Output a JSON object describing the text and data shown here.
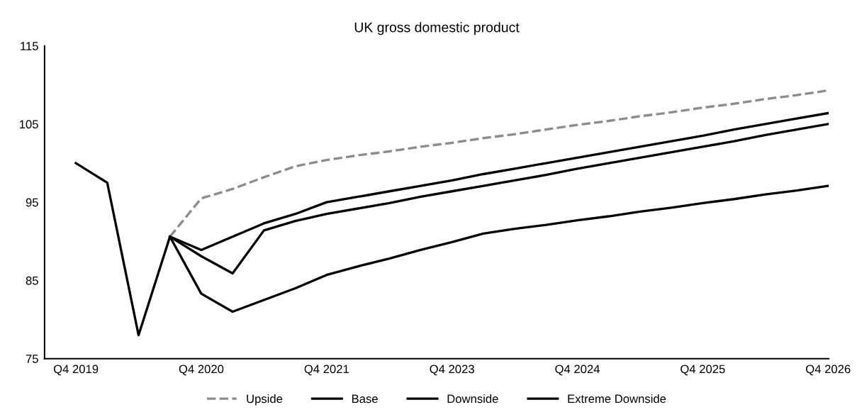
{
  "chart_data": {
    "type": "line",
    "title": "UK gross domestic product",
    "categories": [
      "Q4 2019",
      null,
      null,
      null,
      "Q4 2020",
      null,
      null,
      null,
      "Q4 2021",
      null,
      null,
      null,
      "Q4 2023",
      null,
      null,
      null,
      "Q4 2024",
      null,
      null,
      null,
      "Q4 2025",
      null,
      null,
      null,
      "Q4 2026"
    ],
    "series": [
      {
        "name": "Upside",
        "color": "#8c8c8c",
        "line_style": "dashed",
        "values": [
          null,
          null,
          null,
          90.6,
          95.5,
          96.7,
          98.2,
          99.6,
          100.4,
          101.0,
          101.5,
          102.1,
          102.6,
          103.2,
          103.7,
          104.3,
          104.9,
          105.4,
          106.0,
          106.5,
          107.1,
          107.6,
          108.2,
          108.7,
          109.3
        ]
      },
      {
        "name": "Base",
        "color": "#000000",
        "values": [
          100.0,
          97.5,
          78.0,
          90.6,
          88.9,
          90.6,
          92.3,
          93.5,
          95.0,
          95.7,
          96.4,
          97.1,
          97.8,
          98.6,
          99.3,
          100.0,
          100.7,
          101.4,
          102.1,
          102.8,
          103.5,
          104.3,
          105.0,
          105.7,
          106.4
        ]
      },
      {
        "name": "Downside",
        "color": "#000000",
        "values": [
          null,
          null,
          null,
          90.6,
          88.1,
          85.9,
          91.4,
          92.6,
          93.5,
          94.2,
          94.9,
          95.7,
          96.4,
          97.1,
          97.8,
          98.5,
          99.3,
          100.0,
          100.7,
          101.4,
          102.1,
          102.8,
          103.6,
          104.3,
          105.0
        ]
      },
      {
        "name": "Extreme Downside",
        "color": "#000000",
        "values": [
          null,
          null,
          null,
          90.6,
          83.3,
          81.0,
          82.5,
          84.0,
          85.7,
          86.8,
          87.8,
          88.9,
          89.9,
          91.0,
          91.6,
          92.1,
          92.7,
          93.2,
          93.8,
          94.3,
          94.9,
          95.4,
          96.0,
          96.5,
          97.1
        ]
      }
    ],
    "ylim": [
      75,
      115
    ],
    "yticks": [
      75,
      85,
      95,
      105,
      115
    ],
    "grid": false,
    "legend": "bottom"
  }
}
